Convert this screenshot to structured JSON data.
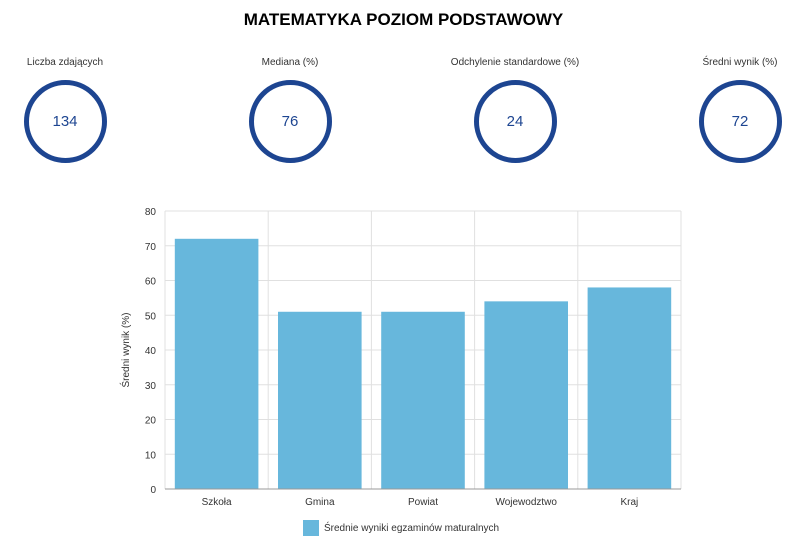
{
  "title": "MATEMATYKA POZIOM PODSTAWOWY",
  "stats": [
    {
      "label": "Liczba zdających",
      "value": "134"
    },
    {
      "label": "Mediana (%)",
      "value": "76"
    },
    {
      "label": "Odchylenie standardowe (%)",
      "value": "24"
    },
    {
      "label": "Średni wynik (%)",
      "value": "72"
    }
  ],
  "colors": {
    "bar": "#67b7dc",
    "circle": "#1d4591",
    "grid": "#e0e0e0",
    "axis": "#999999"
  },
  "chart_data": {
    "type": "bar",
    "categories": [
      "Szkoła",
      "Gmina",
      "Powiat",
      "Wojewodztwo",
      "Kraj"
    ],
    "series": [
      {
        "name": "Średnie wyniki egzaminów maturalnych",
        "values": [
          72,
          51,
          51,
          54,
          58
        ]
      }
    ],
    "ylabel": "Średni wynik (%)",
    "ylim": [
      0,
      80
    ],
    "yticks": [
      0,
      10,
      20,
      30,
      40,
      50,
      60,
      70,
      80
    ],
    "grid": true,
    "legend": "bottom-center"
  }
}
